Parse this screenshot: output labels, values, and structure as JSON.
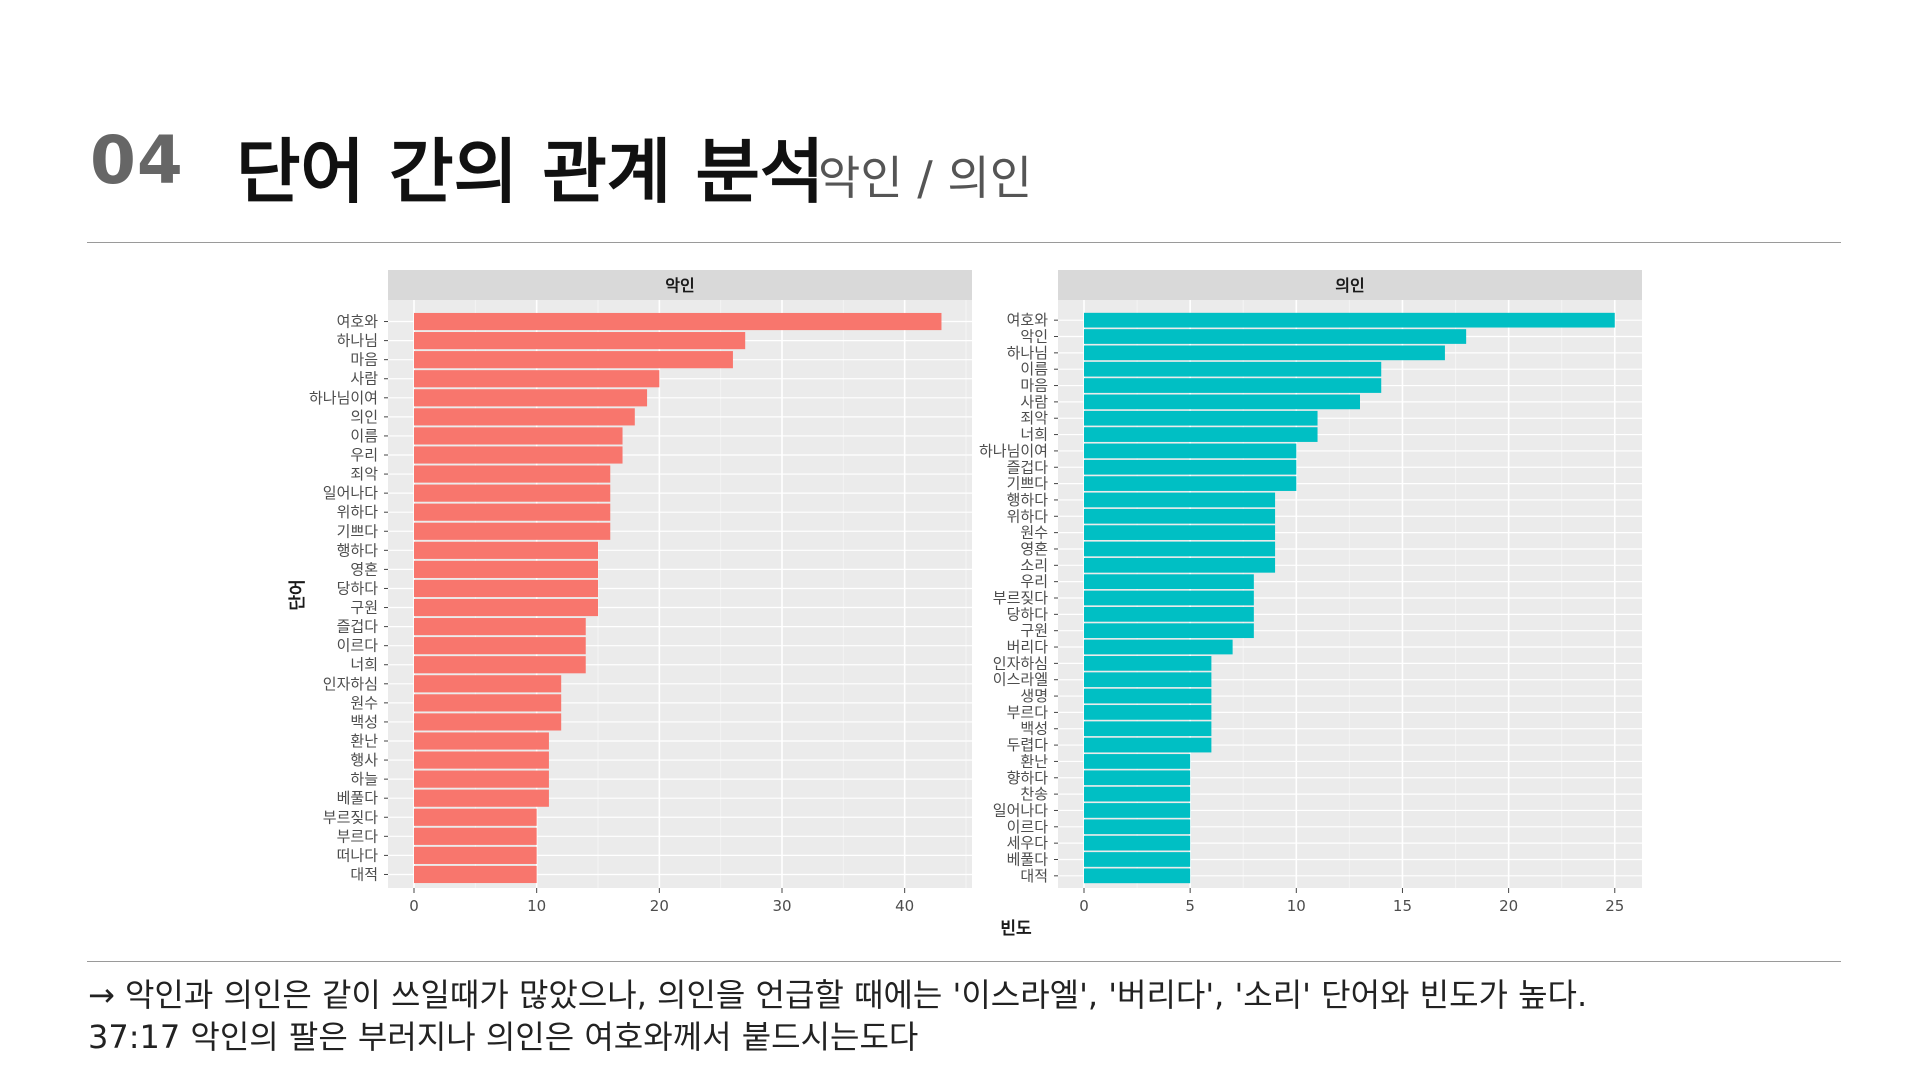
{
  "slide": {
    "number": "04",
    "title": "단어 간의 관계 분석",
    "subtitle": "악인 / 의인",
    "caption_line1": "→ 악인과 의인은 같이 쓰일때가 많았으나, 의인을 언급할 때에는 '이스라엘', '버리다', '소리' 단어와 빈도가 높다.",
    "caption_line2": "37:17 악인의 팔은 부러지나 의인은 여호와께서 붙드시는도다"
  },
  "chart_data": {
    "type": "bar",
    "orientation": "horizontal",
    "xlabel": "빈도",
    "ylabel": "단어",
    "grid": true,
    "panels": [
      {
        "title": "악인",
        "color": "#F8766D",
        "xlim": [
          0,
          45
        ],
        "xticks": [
          0,
          10,
          20,
          30,
          40
        ],
        "categories": [
          "여호와",
          "하나님",
          "마음",
          "사람",
          "하나님이여",
          "의인",
          "이름",
          "우리",
          "죄악",
          "일어나다",
          "위하다",
          "기쁘다",
          "행하다",
          "영혼",
          "당하다",
          "구원",
          "즐겁다",
          "이르다",
          "너희",
          "인자하심",
          "원수",
          "백성",
          "환난",
          "행사",
          "하늘",
          "베풀다",
          "부르짖다",
          "부르다",
          "떠나다",
          "대적"
        ],
        "values": [
          43,
          27,
          26,
          20,
          19,
          18,
          17,
          17,
          16,
          16,
          16,
          16,
          15,
          15,
          15,
          15,
          14,
          14,
          14,
          12,
          12,
          12,
          11,
          11,
          11,
          11,
          10,
          10,
          10,
          10
        ]
      },
      {
        "title": "의인",
        "color": "#00BFC4",
        "xlim": [
          0,
          26
        ],
        "xticks": [
          0,
          5,
          10,
          15,
          20,
          25
        ],
        "categories": [
          "여호와",
          "악인",
          "하나님",
          "이름",
          "마음",
          "사람",
          "죄악",
          "너희",
          "하나님이여",
          "즐겁다",
          "기쁘다",
          "행하다",
          "위하다",
          "원수",
          "영혼",
          "소리",
          "우리",
          "부르짖다",
          "당하다",
          "구원",
          "버리다",
          "인자하심",
          "이스라엘",
          "생명",
          "부르다",
          "백성",
          "두렵다",
          "환난",
          "향하다",
          "찬송",
          "일어나다",
          "이르다",
          "세우다",
          "베풀다",
          "대적"
        ],
        "values": [
          25,
          18,
          17,
          14,
          14,
          13,
          11,
          11,
          10,
          10,
          10,
          9,
          9,
          9,
          9,
          9,
          8,
          8,
          8,
          8,
          7,
          6,
          6,
          6,
          6,
          6,
          6,
          5,
          5,
          5,
          5,
          5,
          5,
          5,
          5
        ]
      }
    ]
  }
}
